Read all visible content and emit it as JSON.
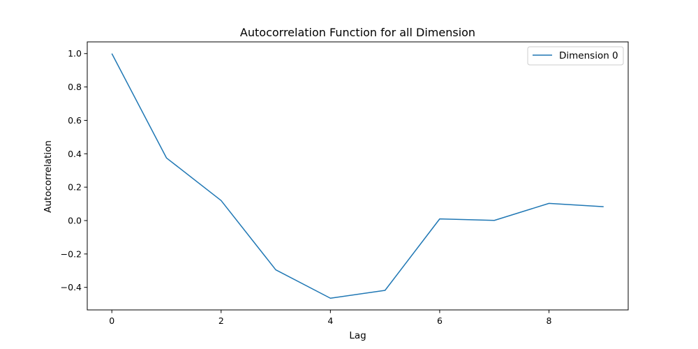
{
  "chart_data": {
    "type": "line",
    "title": "Autocorrelation Function for all Dimension",
    "xlabel": "Lag",
    "ylabel": "Autocorrelation",
    "xlim": [
      -0.45,
      9.45
    ],
    "ylim": [
      -0.535,
      1.07
    ],
    "xticks": [
      0,
      2,
      4,
      6,
      8
    ],
    "xtick_labels": [
      "0",
      "2",
      "4",
      "6",
      "8"
    ],
    "yticks": [
      -0.4,
      -0.2,
      0.0,
      0.2,
      0.4,
      0.6,
      0.8,
      1.0
    ],
    "ytick_labels": [
      "−0.4",
      "−0.2",
      "0.0",
      "0.2",
      "0.4",
      "0.6",
      "0.8",
      "1.0"
    ],
    "grid": false,
    "legend_position": "top-right",
    "series": [
      {
        "name": "Dimension 0",
        "color": "#1f77b4",
        "x": [
          0,
          1,
          2,
          3,
          4,
          5,
          6,
          7,
          8,
          9
        ],
        "y": [
          1.0,
          0.375,
          0.12,
          -0.295,
          -0.465,
          -0.418,
          0.01,
          0.001,
          0.103,
          0.083
        ]
      }
    ]
  }
}
